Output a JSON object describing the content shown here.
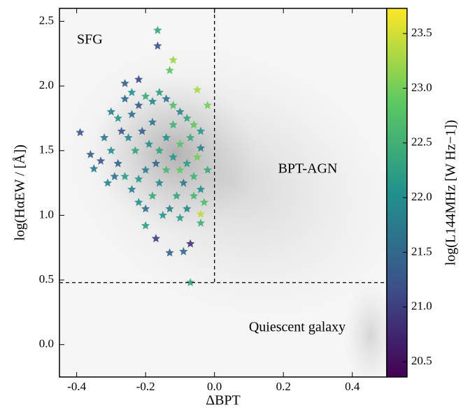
{
  "chart_data": {
    "type": "scatter",
    "xlabel": "ΔBPT",
    "ylabel": "log(HαEW / [Å])",
    "colorbar_label": "log(L144MHz [W Hz−1])",
    "colormap": "viridis",
    "annotations": [
      {
        "text": "SFG",
        "color": "#2b7bba"
      },
      {
        "text": "BPT-AGN",
        "color": "#d62728"
      },
      {
        "text": "Quiescent galaxy",
        "color": "#000000"
      }
    ],
    "xlim": [
      -0.45,
      0.5
    ],
    "ylim": [
      -0.25,
      2.6
    ],
    "clim": [
      20.36,
      23.73
    ],
    "xticks": [
      -0.4,
      -0.2,
      {
        "value": 0,
        "label": "0.0"
      },
      0.2,
      0.4
    ],
    "yticks": [
      {
        "value": 0,
        "label": "0.0"
      },
      0.5,
      {
        "value": 1,
        "label": "1.0"
      },
      1.5,
      {
        "value": 2,
        "label": "2.0"
      },
      2.5
    ],
    "cticks": [
      20.5,
      {
        "value": 21,
        "label": "21.0"
      },
      21.5,
      {
        "value": 22,
        "label": "22.0"
      },
      22.5,
      {
        "value": 23,
        "label": "23.0"
      },
      23.5
    ],
    "divider_x": 0,
    "divider_y": 0.48,
    "series": [
      {
        "x": [
          -0.165,
          -0.165,
          -0.12,
          -0.13,
          -0.05,
          -0.02,
          -0.39,
          -0.36,
          -0.35,
          -0.07,
          -0.07,
          -0.09,
          -0.13,
          -0.17,
          -0.2,
          -0.04,
          -0.04,
          -0.3,
          -0.28,
          -0.26,
          -0.24,
          -0.22,
          -0.2,
          -0.18,
          -0.16,
          -0.14,
          -0.12,
          -0.1,
          -0.08,
          -0.06,
          -0.04,
          -0.32,
          -0.3,
          -0.28,
          -0.26,
          -0.24,
          -0.22,
          -0.2,
          -0.18,
          -0.16,
          -0.14,
          -0.12,
          -0.1,
          -0.08,
          -0.06,
          -0.04,
          -0.03,
          -0.05,
          -0.07,
          -0.09,
          -0.11,
          -0.13,
          -0.15,
          -0.17,
          -0.19,
          -0.21,
          -0.23,
          -0.25,
          -0.27,
          -0.29,
          -0.31,
          -0.33,
          -0.14,
          -0.12,
          -0.1,
          -0.18,
          -0.16,
          -0.2,
          -0.22,
          -0.24,
          -0.02,
          -0.04,
          -0.06,
          -0.08,
          -0.1,
          -0.26,
          -0.22
        ],
        "values": [
          2.43,
          2.31,
          2.2,
          2.12,
          1.97,
          1.85,
          1.64,
          1.47,
          1.36,
          0.48,
          0.78,
          0.72,
          0.71,
          0.82,
          0.92,
          0.94,
          1.01,
          1.8,
          1.75,
          1.9,
          1.95,
          1.85,
          1.92,
          1.88,
          1.95,
          1.9,
          1.85,
          1.8,
          1.75,
          1.7,
          1.65,
          1.6,
          1.5,
          1.4,
          1.3,
          1.2,
          1.1,
          1.05,
          1.15,
          1.25,
          1.35,
          1.45,
          1.55,
          1.4,
          1.3,
          1.2,
          1.1,
          1.45,
          1.6,
          1.25,
          1.15,
          1.05,
          1.0,
          1.4,
          1.55,
          1.65,
          1.5,
          1.6,
          1.65,
          1.3,
          1.25,
          1.42,
          1.6,
          1.7,
          1.35,
          1.72,
          1.5,
          1.35,
          1.28,
          1.78,
          1.35,
          1.52,
          1.15,
          1.05,
          0.98,
          2.02,
          2.05
        ],
        "color_values": [
          22.3,
          21.2,
          23.2,
          22.8,
          23.3,
          23.0,
          21.2,
          21.4,
          21.7,
          22.3,
          20.9,
          21.5,
          21.4,
          21.0,
          22.2,
          22.5,
          23.4,
          21.8,
          22.1,
          21.5,
          22.0,
          21.3,
          22.4,
          21.9,
          22.2,
          21.6,
          22.7,
          21.9,
          22.3,
          22.9,
          22.1,
          21.7,
          22.0,
          21.4,
          22.2,
          21.8,
          22.0,
          21.6,
          22.4,
          21.9,
          22.6,
          22.1,
          22.8,
          22.2,
          22.5,
          22.0,
          22.7,
          23.0,
          22.4,
          21.7,
          22.3,
          21.8,
          22.1,
          21.5,
          22.0,
          21.4,
          22.3,
          21.9,
          21.2,
          21.6,
          21.9,
          21.3,
          22.0,
          22.5,
          22.9,
          21.7,
          22.3,
          21.8,
          22.1,
          21.6,
          22.4,
          21.8,
          22.6,
          21.9,
          22.2,
          21.4,
          21.1
        ]
      }
    ]
  }
}
